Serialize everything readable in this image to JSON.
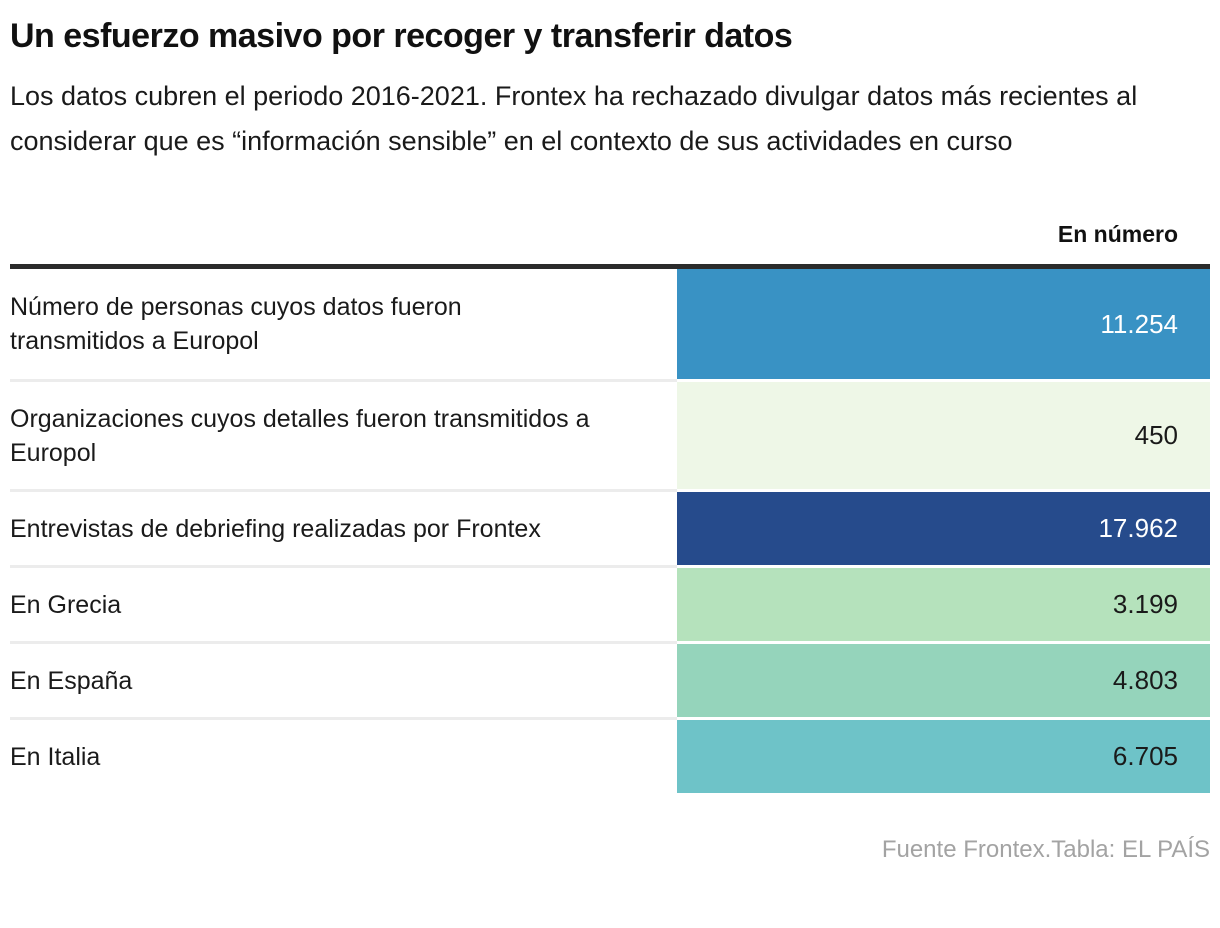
{
  "header": {
    "title": "Un esfuerzo masivo por recoger y transferir datos",
    "subtitle": "Los datos cubren el periodo 2016-2021. Frontex ha rechazado divulgar datos más recientes al considerar que es “información sensible” en el contexto de sus actividades en curso"
  },
  "table": {
    "value_column_header": "En número",
    "rows": [
      {
        "label": "Número de personas cuyos datos fueron transmitidos a Europol",
        "value": "11.254",
        "bg": "#3992C4",
        "text": "#FFFFFF"
      },
      {
        "label": "Organizaciones cuyos detalles fueron transmitidos a Europol",
        "value": "450",
        "bg": "#EEF7E7",
        "text": "#1A1A1A"
      },
      {
        "label": "Entrevistas de debriefing realizadas por Frontex",
        "value": "17.962",
        "bg": "#264B8C",
        "text": "#FFFFFF"
      },
      {
        "label": "En Grecia",
        "value": "3.199",
        "bg": "#B5E2BC",
        "text": "#1A1A1A"
      },
      {
        "label": "En España",
        "value": "4.803",
        "bg": "#95D4BB",
        "text": "#1A1A1A"
      },
      {
        "label": "En Italia",
        "value": "6.705",
        "bg": "#6EC3C8",
        "text": "#1A1A1A"
      }
    ]
  },
  "footer": {
    "source": "Fuente Frontex.Tabla: EL PAÍS"
  },
  "chart_data": {
    "type": "table",
    "title": "Un esfuerzo masivo por recoger y transferir datos",
    "subtitle": "Los datos cubren el periodo 2016-2021. Frontex ha rechazado divulgar datos más recientes al considerar que es “información sensible” en el contexto de sus actividades en curso",
    "value_header": "En número",
    "categories": [
      "Número de personas cuyos datos fueron transmitidos a Europol",
      "Organizaciones cuyos detalles fueron transmitidos a Europol",
      "Entrevistas de debriefing realizadas por Frontex",
      "En Grecia",
      "En España",
      "En Italia"
    ],
    "values": [
      11254,
      450,
      17962,
      3199,
      4803,
      6705
    ],
    "cell_colors": [
      "#3992C4",
      "#EEF7E7",
      "#264B8C",
      "#B5E2BC",
      "#95D4BB",
      "#6EC3C8"
    ],
    "source": "Fuente Frontex.Tabla: EL PAÍS"
  }
}
